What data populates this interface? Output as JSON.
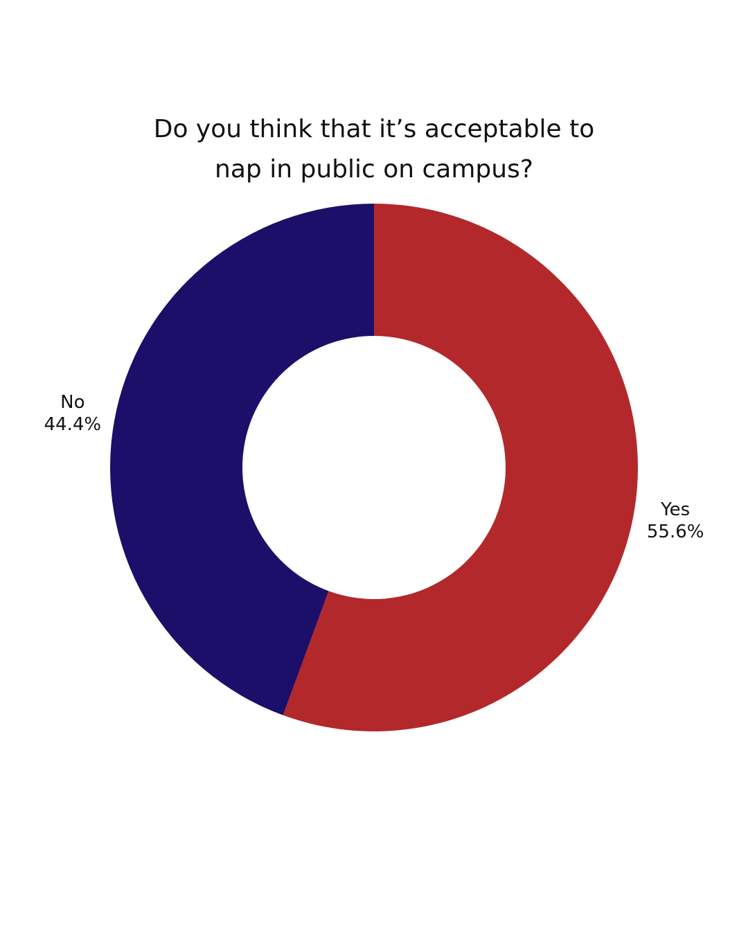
{
  "chart_data": {
    "type": "donut",
    "title": "Do you think that it’s acceptable to nap in public on campus?",
    "categories": [
      "Yes",
      "No"
    ],
    "values": [
      55.6,
      44.4
    ],
    "value_labels": [
      "55.6%",
      "44.4%"
    ],
    "colors": [
      "#b3282b",
      "#1c0f69"
    ]
  }
}
